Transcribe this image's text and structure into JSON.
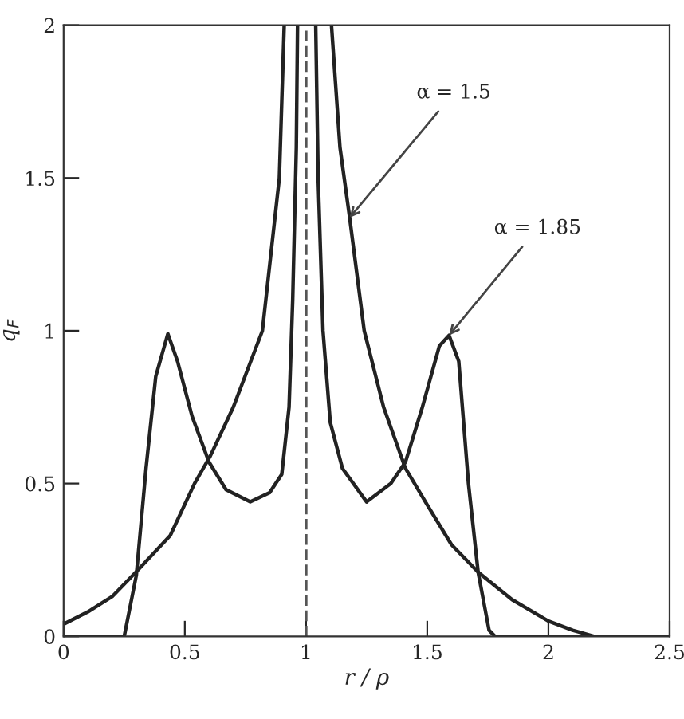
{
  "chart_data": {
    "type": "line",
    "xlabel": "r / ρ",
    "ylabel": "q$_{F}$",
    "xlim": [
      0,
      2.5
    ],
    "ylim": [
      0,
      2
    ],
    "xticks": [
      0,
      0.5,
      1,
      1.5,
      2,
      2.5
    ],
    "yticks": [
      0,
      0.5,
      1,
      1.5,
      2
    ],
    "grid": false,
    "legend": false,
    "line_style": "solid",
    "marker": "none",
    "series": [
      {
        "color": "#222222",
        "x": [
          0,
          0.1,
          0.2,
          0.31,
          0.44,
          0.54,
          0.605,
          0.7,
          0.82,
          0.89,
          0.91,
          1.0,
          1.105,
          1.14,
          1.18,
          1.24,
          1.32,
          1.41,
          1.5,
          1.6,
          1.71,
          1.85,
          2.0,
          2.1,
          2.19,
          2.5
        ],
        "values": [
          0.04,
          0.08,
          0.13,
          0.22,
          0.33,
          0.5,
          0.59,
          0.75,
          1.0,
          1.5,
          2.0,
          null,
          2.0,
          1.6,
          1.37,
          1.0,
          0.75,
          0.55,
          0.43,
          0.3,
          0.21,
          0.12,
          0.05,
          0.02,
          0,
          0
        ]
      },
      {
        "color": "#222222",
        "x": [
          0,
          0.25,
          0.3,
          0.34,
          0.38,
          0.43,
          0.47,
          0.53,
          0.6,
          0.67,
          0.77,
          0.85,
          0.9,
          0.93,
          0.945,
          0.96,
          0.965,
          1.0,
          1.04,
          1.05,
          1.07,
          1.1,
          1.15,
          1.25,
          1.35,
          1.41,
          1.48,
          1.55,
          1.59,
          1.63,
          1.67,
          1.71,
          1.755,
          1.78,
          2.5
        ],
        "values": [
          0,
          0,
          0.2,
          0.55,
          0.85,
          0.99,
          0.9,
          0.72,
          0.57,
          0.48,
          0.44,
          0.47,
          0.53,
          0.75,
          1.1,
          1.6,
          2.0,
          null,
          2.0,
          1.5,
          1.0,
          0.7,
          0.55,
          0.44,
          0.5,
          0.57,
          0.75,
          0.95,
          0.985,
          0.9,
          0.5,
          0.21,
          0.02,
          0,
          0
        ]
      }
    ],
    "ref_lines": [
      {
        "axis": "x",
        "value": 1,
        "color": "#555555",
        "line_style": "dashed"
      }
    ],
    "annotations": [
      {
        "text": "α = 1.5",
        "x": 1.18,
        "y": 1.37
      },
      {
        "text": "α = 1.85",
        "x": 1.59,
        "y": 0.985
      }
    ]
  }
}
